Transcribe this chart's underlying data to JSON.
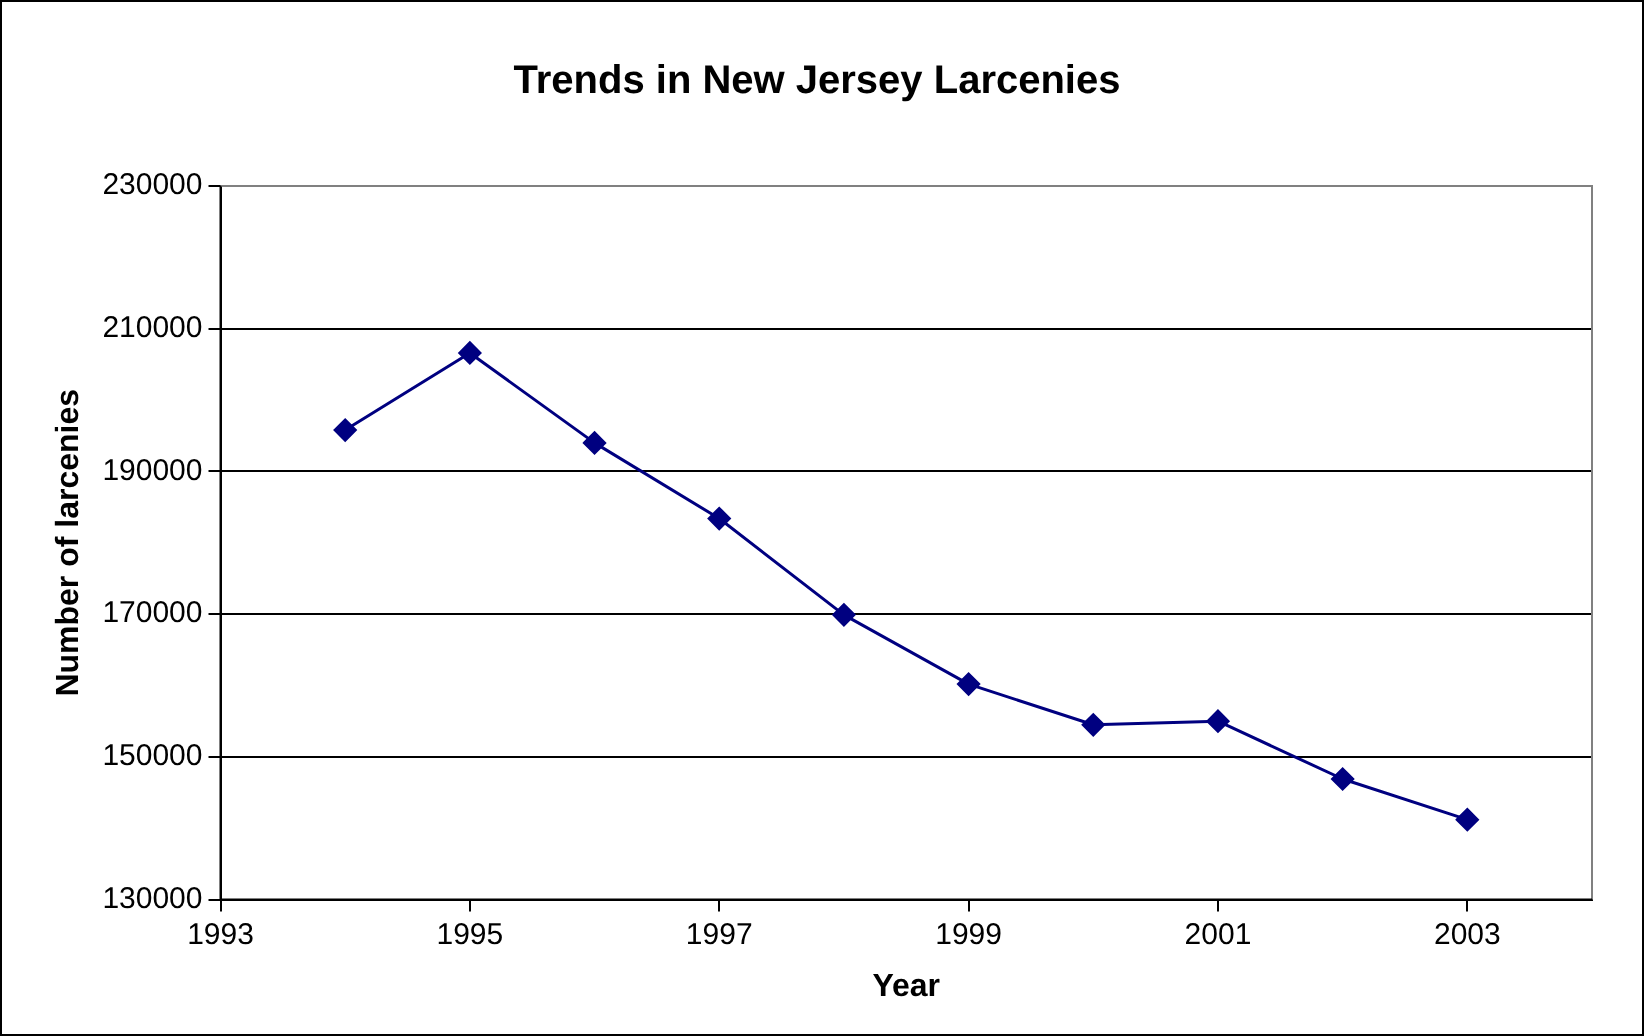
{
  "chart_data": {
    "type": "line",
    "title": "Trends in New Jersey Larcenies",
    "xlabel": "Year",
    "ylabel": "Number of larcenies",
    "x": [
      1994,
      1995,
      1996,
      1997,
      1998,
      1999,
      2000,
      2001,
      2002,
      2003
    ],
    "series": [
      {
        "color": "#000080",
        "values": [
          195800,
          206600,
          194000,
          183400,
          169900,
          160200,
          154500,
          155000,
          146900,
          141200
        ]
      }
    ],
    "xlim": [
      1993,
      2004
    ],
    "xticks": [
      1993,
      1995,
      1997,
      1999,
      2001,
      2003
    ],
    "ylim": [
      130000,
      230000
    ],
    "yticks": [
      130000,
      150000,
      170000,
      190000,
      210000,
      230000
    ],
    "grid": "y",
    "legend": false,
    "marker": "diamond",
    "line_style": "solid"
  }
}
